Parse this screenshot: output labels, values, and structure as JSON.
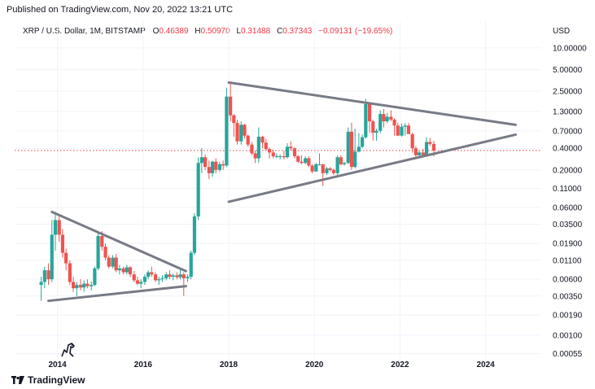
{
  "header": {
    "published": "Published on TradingView.com, Nov 20, 2022 13:21 UTC"
  },
  "legend": {
    "symbol": "XRP / U.S. Dollar, 1M, BITSTAMP",
    "o_label": "O",
    "o_value": "0.46389",
    "h_label": "H",
    "h_value": "0.50970",
    "l_label": "L",
    "l_value": "0.31488",
    "c_label": "C",
    "c_value": "0.37343",
    "change": "−0.09131 (−19.65%)"
  },
  "currency": "USD",
  "footer": {
    "brand": "TradingView"
  },
  "colors": {
    "up": "#26a69a",
    "down": "#ef5350",
    "trendline": "#787b86",
    "price_line": "#f23645"
  },
  "chart_data": {
    "type": "candlestick",
    "yscale": "log",
    "ylim": [
      0.00035,
      14
    ],
    "xlim": [
      2013.0,
      2025.3
    ],
    "y_ticks": [
      "10.00000",
      "5.00000",
      "2.50000",
      "1.30000",
      "0.70000",
      "0.40000",
      "0.20000",
      "0.11000",
      "0.06000",
      "0.03500",
      "0.01900",
      "0.01100",
      "0.00600",
      "0.00350",
      "0.00190",
      "0.00100",
      "0.00055"
    ],
    "x_ticks": [
      "2014",
      "2016",
      "2018",
      "2020",
      "2022",
      "2024"
    ],
    "last_price": 0.37343,
    "candles": [
      {
        "t": 2013.62,
        "o": 0.005,
        "h": 0.0065,
        "l": 0.003,
        "c": 0.0055
      },
      {
        "t": 2013.7,
        "o": 0.0055,
        "h": 0.009,
        "l": 0.0045,
        "c": 0.008
      },
      {
        "t": 2013.79,
        "o": 0.008,
        "h": 0.01,
        "l": 0.005,
        "c": 0.006
      },
      {
        "t": 2013.87,
        "o": 0.006,
        "h": 0.04,
        "l": 0.0055,
        "c": 0.025
      },
      {
        "t": 2013.95,
        "o": 0.025,
        "h": 0.052,
        "l": 0.015,
        "c": 0.04
      },
      {
        "t": 2014.04,
        "o": 0.04,
        "h": 0.045,
        "l": 0.02,
        "c": 0.025
      },
      {
        "t": 2014.12,
        "o": 0.025,
        "h": 0.03,
        "l": 0.012,
        "c": 0.014
      },
      {
        "t": 2014.2,
        "o": 0.014,
        "h": 0.016,
        "l": 0.008,
        "c": 0.01
      },
      {
        "t": 2014.29,
        "o": 0.01,
        "h": 0.011,
        "l": 0.005,
        "c": 0.0055
      },
      {
        "t": 2014.37,
        "o": 0.0055,
        "h": 0.0065,
        "l": 0.004,
        "c": 0.0045
      },
      {
        "t": 2014.45,
        "o": 0.0045,
        "h": 0.0055,
        "l": 0.0035,
        "c": 0.005
      },
      {
        "t": 2014.54,
        "o": 0.005,
        "h": 0.006,
        "l": 0.0042,
        "c": 0.0046
      },
      {
        "t": 2014.62,
        "o": 0.0046,
        "h": 0.0058,
        "l": 0.004,
        "c": 0.0052
      },
      {
        "t": 2014.7,
        "o": 0.0052,
        "h": 0.006,
        "l": 0.0045,
        "c": 0.0048
      },
      {
        "t": 2014.79,
        "o": 0.0048,
        "h": 0.0056,
        "l": 0.0042,
        "c": 0.005
      },
      {
        "t": 2014.87,
        "o": 0.005,
        "h": 0.009,
        "l": 0.0048,
        "c": 0.0085
      },
      {
        "t": 2014.95,
        "o": 0.0085,
        "h": 0.027,
        "l": 0.008,
        "c": 0.024
      },
      {
        "t": 2015.04,
        "o": 0.024,
        "h": 0.028,
        "l": 0.015,
        "c": 0.017
      },
      {
        "t": 2015.12,
        "o": 0.017,
        "h": 0.019,
        "l": 0.011,
        "c": 0.012
      },
      {
        "t": 2015.2,
        "o": 0.012,
        "h": 0.013,
        "l": 0.0085,
        "c": 0.009
      },
      {
        "t": 2015.29,
        "o": 0.009,
        "h": 0.013,
        "l": 0.0085,
        "c": 0.012
      },
      {
        "t": 2015.37,
        "o": 0.012,
        "h": 0.0135,
        "l": 0.0075,
        "c": 0.008
      },
      {
        "t": 2015.45,
        "o": 0.008,
        "h": 0.0095,
        "l": 0.007,
        "c": 0.0085
      },
      {
        "t": 2015.54,
        "o": 0.0085,
        "h": 0.009,
        "l": 0.007,
        "c": 0.0075
      },
      {
        "t": 2015.62,
        "o": 0.0075,
        "h": 0.0095,
        "l": 0.007,
        "c": 0.0088
      },
      {
        "t": 2015.7,
        "o": 0.0088,
        "h": 0.0092,
        "l": 0.0065,
        "c": 0.007
      },
      {
        "t": 2015.79,
        "o": 0.007,
        "h": 0.0078,
        "l": 0.0055,
        "c": 0.0058
      },
      {
        "t": 2015.87,
        "o": 0.0058,
        "h": 0.0065,
        "l": 0.005,
        "c": 0.0052
      },
      {
        "t": 2015.95,
        "o": 0.0052,
        "h": 0.006,
        "l": 0.0045,
        "c": 0.0055
      },
      {
        "t": 2016.04,
        "o": 0.0055,
        "h": 0.007,
        "l": 0.005,
        "c": 0.0065
      },
      {
        "t": 2016.12,
        "o": 0.0065,
        "h": 0.008,
        "l": 0.006,
        "c": 0.0075
      },
      {
        "t": 2016.2,
        "o": 0.0075,
        "h": 0.009,
        "l": 0.0065,
        "c": 0.007
      },
      {
        "t": 2016.29,
        "o": 0.007,
        "h": 0.0075,
        "l": 0.0055,
        "c": 0.0058
      },
      {
        "t": 2016.37,
        "o": 0.0058,
        "h": 0.0065,
        "l": 0.005,
        "c": 0.006
      },
      {
        "t": 2016.45,
        "o": 0.006,
        "h": 0.0068,
        "l": 0.0055,
        "c": 0.0062
      },
      {
        "t": 2016.54,
        "o": 0.0062,
        "h": 0.0075,
        "l": 0.0058,
        "c": 0.007
      },
      {
        "t": 2016.62,
        "o": 0.007,
        "h": 0.008,
        "l": 0.006,
        "c": 0.0065
      },
      {
        "t": 2016.7,
        "o": 0.0065,
        "h": 0.0072,
        "l": 0.0058,
        "c": 0.0068
      },
      {
        "t": 2016.79,
        "o": 0.0068,
        "h": 0.0075,
        "l": 0.006,
        "c": 0.0064
      },
      {
        "t": 2016.87,
        "o": 0.0064,
        "h": 0.0085,
        "l": 0.006,
        "c": 0.007
      },
      {
        "t": 2016.95,
        "o": 0.007,
        "h": 0.0075,
        "l": 0.0035,
        "c": 0.0062
      },
      {
        "t": 2017.04,
        "o": 0.0062,
        "h": 0.007,
        "l": 0.0055,
        "c": 0.0065
      },
      {
        "t": 2017.12,
        "o": 0.0065,
        "h": 0.015,
        "l": 0.006,
        "c": 0.014
      },
      {
        "t": 2017.2,
        "o": 0.014,
        "h": 0.05,
        "l": 0.013,
        "c": 0.045
      },
      {
        "t": 2017.29,
        "o": 0.045,
        "h": 0.3,
        "l": 0.04,
        "c": 0.25
      },
      {
        "t": 2017.37,
        "o": 0.25,
        "h": 0.4,
        "l": 0.18,
        "c": 0.3
      },
      {
        "t": 2017.45,
        "o": 0.3,
        "h": 0.33,
        "l": 0.2,
        "c": 0.22
      },
      {
        "t": 2017.54,
        "o": 0.22,
        "h": 0.27,
        "l": 0.15,
        "c": 0.18
      },
      {
        "t": 2017.62,
        "o": 0.18,
        "h": 0.27,
        "l": 0.16,
        "c": 0.26
      },
      {
        "t": 2017.7,
        "o": 0.26,
        "h": 0.29,
        "l": 0.18,
        "c": 0.2
      },
      {
        "t": 2017.79,
        "o": 0.2,
        "h": 0.26,
        "l": 0.19,
        "c": 0.24
      },
      {
        "t": 2017.87,
        "o": 0.24,
        "h": 0.27,
        "l": 0.2,
        "c": 0.23
      },
      {
        "t": 2017.95,
        "o": 0.23,
        "h": 2.8,
        "l": 0.22,
        "c": 2.1
      },
      {
        "t": 2018.04,
        "o": 2.1,
        "h": 3.3,
        "l": 0.95,
        "c": 1.15
      },
      {
        "t": 2018.12,
        "o": 1.15,
        "h": 1.2,
        "l": 0.58,
        "c": 0.9
      },
      {
        "t": 2018.2,
        "o": 0.9,
        "h": 1.0,
        "l": 0.45,
        "c": 0.5
      },
      {
        "t": 2018.29,
        "o": 0.5,
        "h": 0.95,
        "l": 0.45,
        "c": 0.85
      },
      {
        "t": 2018.37,
        "o": 0.85,
        "h": 0.88,
        "l": 0.55,
        "c": 0.6
      },
      {
        "t": 2018.45,
        "o": 0.6,
        "h": 0.62,
        "l": 0.42,
        "c": 0.45
      },
      {
        "t": 2018.54,
        "o": 0.45,
        "h": 0.49,
        "l": 0.32,
        "c": 0.34
      },
      {
        "t": 2018.62,
        "o": 0.34,
        "h": 0.37,
        "l": 0.25,
        "c": 0.29
      },
      {
        "t": 2018.7,
        "o": 0.29,
        "h": 0.78,
        "l": 0.25,
        "c": 0.58
      },
      {
        "t": 2018.79,
        "o": 0.58,
        "h": 0.6,
        "l": 0.4,
        "c": 0.48
      },
      {
        "t": 2018.87,
        "o": 0.48,
        "h": 0.54,
        "l": 0.37,
        "c": 0.39
      },
      {
        "t": 2018.95,
        "o": 0.39,
        "h": 0.41,
        "l": 0.29,
        "c": 0.35
      },
      {
        "t": 2019.04,
        "o": 0.35,
        "h": 0.38,
        "l": 0.29,
        "c": 0.31
      },
      {
        "t": 2019.12,
        "o": 0.31,
        "h": 0.34,
        "l": 0.29,
        "c": 0.31
      },
      {
        "t": 2019.2,
        "o": 0.31,
        "h": 0.33,
        "l": 0.28,
        "c": 0.31
      },
      {
        "t": 2019.29,
        "o": 0.31,
        "h": 0.37,
        "l": 0.28,
        "c": 0.3
      },
      {
        "t": 2019.37,
        "o": 0.3,
        "h": 0.47,
        "l": 0.29,
        "c": 0.42
      },
      {
        "t": 2019.45,
        "o": 0.42,
        "h": 0.5,
        "l": 0.37,
        "c": 0.4
      },
      {
        "t": 2019.54,
        "o": 0.4,
        "h": 0.41,
        "l": 0.29,
        "c": 0.31
      },
      {
        "t": 2019.62,
        "o": 0.31,
        "h": 0.32,
        "l": 0.25,
        "c": 0.26
      },
      {
        "t": 2019.7,
        "o": 0.26,
        "h": 0.32,
        "l": 0.24,
        "c": 0.25
      },
      {
        "t": 2019.79,
        "o": 0.25,
        "h": 0.31,
        "l": 0.24,
        "c": 0.29
      },
      {
        "t": 2019.87,
        "o": 0.29,
        "h": 0.31,
        "l": 0.22,
        "c": 0.23
      },
      {
        "t": 2019.95,
        "o": 0.23,
        "h": 0.24,
        "l": 0.18,
        "c": 0.19
      },
      {
        "t": 2020.04,
        "o": 0.19,
        "h": 0.25,
        "l": 0.19,
        "c": 0.24
      },
      {
        "t": 2020.12,
        "o": 0.24,
        "h": 0.34,
        "l": 0.23,
        "c": 0.24
      },
      {
        "t": 2020.2,
        "o": 0.24,
        "h": 0.24,
        "l": 0.12,
        "c": 0.18
      },
      {
        "t": 2020.29,
        "o": 0.18,
        "h": 0.22,
        "l": 0.17,
        "c": 0.21
      },
      {
        "t": 2020.37,
        "o": 0.21,
        "h": 0.22,
        "l": 0.19,
        "c": 0.2
      },
      {
        "t": 2020.45,
        "o": 0.2,
        "h": 0.21,
        "l": 0.17,
        "c": 0.18
      },
      {
        "t": 2020.54,
        "o": 0.18,
        "h": 0.32,
        "l": 0.17,
        "c": 0.3
      },
      {
        "t": 2020.62,
        "o": 0.3,
        "h": 0.32,
        "l": 0.23,
        "c": 0.24
      },
      {
        "t": 2020.7,
        "o": 0.24,
        "h": 0.26,
        "l": 0.23,
        "c": 0.25
      },
      {
        "t": 2020.79,
        "o": 0.25,
        "h": 0.78,
        "l": 0.24,
        "c": 0.68
      },
      {
        "t": 2020.87,
        "o": 0.68,
        "h": 0.91,
        "l": 0.2,
        "c": 0.22
      },
      {
        "t": 2020.95,
        "o": 0.22,
        "h": 0.75,
        "l": 0.21,
        "c": 0.36
      },
      {
        "t": 2021.04,
        "o": 0.36,
        "h": 0.65,
        "l": 0.35,
        "c": 0.42
      },
      {
        "t": 2021.12,
        "o": 0.42,
        "h": 0.62,
        "l": 0.4,
        "c": 0.57
      },
      {
        "t": 2021.2,
        "o": 0.57,
        "h": 1.96,
        "l": 0.55,
        "c": 1.65
      },
      {
        "t": 2021.29,
        "o": 1.65,
        "h": 1.75,
        "l": 0.65,
        "c": 0.95
      },
      {
        "t": 2021.37,
        "o": 0.95,
        "h": 1.0,
        "l": 0.51,
        "c": 0.66
      },
      {
        "t": 2021.45,
        "o": 0.66,
        "h": 0.75,
        "l": 0.51,
        "c": 0.7
      },
      {
        "t": 2021.54,
        "o": 0.7,
        "h": 1.35,
        "l": 0.65,
        "c": 1.2
      },
      {
        "t": 2021.62,
        "o": 1.2,
        "h": 1.41,
        "l": 0.78,
        "c": 0.95
      },
      {
        "t": 2021.7,
        "o": 0.95,
        "h": 1.25,
        "l": 0.9,
        "c": 1.1
      },
      {
        "t": 2021.79,
        "o": 1.1,
        "h": 1.35,
        "l": 0.95,
        "c": 1.0
      },
      {
        "t": 2021.87,
        "o": 1.0,
        "h": 1.05,
        "l": 0.6,
        "c": 0.83
      },
      {
        "t": 2021.95,
        "o": 0.83,
        "h": 0.91,
        "l": 0.59,
        "c": 0.6
      },
      {
        "t": 2022.04,
        "o": 0.6,
        "h": 0.89,
        "l": 0.58,
        "c": 0.8
      },
      {
        "t": 2022.12,
        "o": 0.8,
        "h": 0.9,
        "l": 0.6,
        "c": 0.83
      },
      {
        "t": 2022.2,
        "o": 0.83,
        "h": 0.9,
        "l": 0.65,
        "c": 0.63
      },
      {
        "t": 2022.29,
        "o": 0.63,
        "h": 0.66,
        "l": 0.35,
        "c": 0.4
      },
      {
        "t": 2022.37,
        "o": 0.4,
        "h": 0.43,
        "l": 0.29,
        "c": 0.32
      },
      {
        "t": 2022.45,
        "o": 0.32,
        "h": 0.38,
        "l": 0.29,
        "c": 0.35
      },
      {
        "t": 2022.54,
        "o": 0.35,
        "h": 0.39,
        "l": 0.32,
        "c": 0.32
      },
      {
        "t": 2022.62,
        "o": 0.32,
        "h": 0.57,
        "l": 0.32,
        "c": 0.49
      },
      {
        "t": 2022.7,
        "o": 0.49,
        "h": 0.56,
        "l": 0.43,
        "c": 0.46
      },
      {
        "t": 2022.79,
        "o": 0.46,
        "h": 0.51,
        "l": 0.31,
        "c": 0.3734
      }
    ],
    "trendlines": [
      {
        "name": "2014-2017 upper",
        "x1": 2013.87,
        "y1": 0.052,
        "x2": 2017.0,
        "y2": 0.0078
      },
      {
        "name": "2014-2017 lower",
        "x1": 2013.79,
        "y1": 0.003,
        "x2": 2017.0,
        "y2": 0.0048
      },
      {
        "name": "2018-2024 upper",
        "x1": 2018.0,
        "y1": 3.3,
        "x2": 2024.7,
        "y2": 0.85
      },
      {
        "name": "2018-2024 lower",
        "x1": 2018.0,
        "y1": 0.072,
        "x2": 2024.7,
        "y2": 0.62
      }
    ]
  }
}
